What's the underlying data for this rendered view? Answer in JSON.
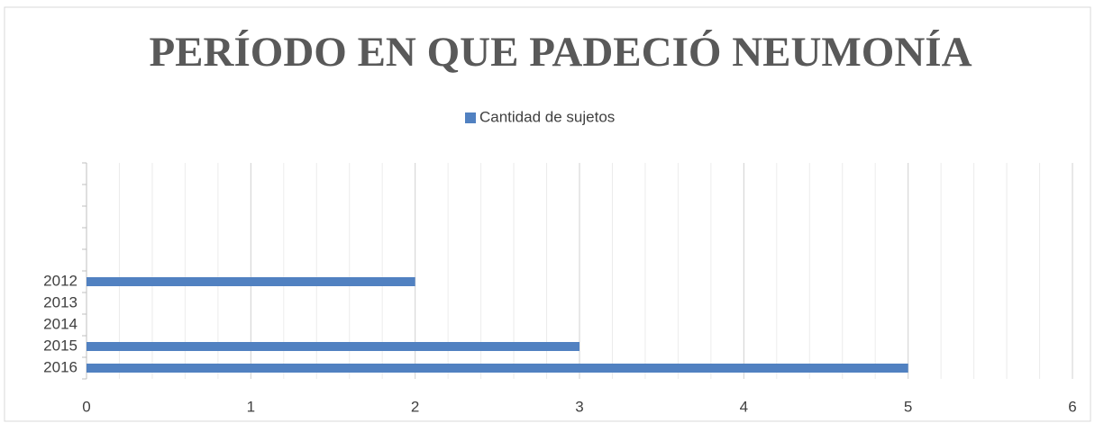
{
  "chart_data": {
    "type": "barh",
    "title": "PERÍODO EN QUE PADECIÓ NEUMONÍA",
    "categories": [
      "2016",
      "2015",
      "2014",
      "2013",
      "2012",
      null,
      null,
      null,
      null,
      null
    ],
    "series": [
      {
        "name": "Cantidad de sujetos",
        "color": "#5181c1",
        "values": [
          5,
          3,
          null,
          null,
          2,
          null,
          null,
          null,
          null,
          null
        ]
      }
    ],
    "xlim": [
      0,
      6
    ],
    "xticks": [
      0,
      1,
      2,
      3,
      4,
      5,
      6
    ],
    "grid": true,
    "minor_grid": 5,
    "legend": "top"
  }
}
